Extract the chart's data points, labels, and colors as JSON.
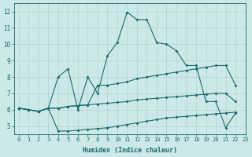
{
  "xlabel": "Humidex (Indice chaleur)",
  "xlim": [
    -0.5,
    23
  ],
  "ylim": [
    4.5,
    12.5
  ],
  "yticks": [
    5,
    6,
    7,
    8,
    9,
    10,
    11,
    12
  ],
  "xticks": [
    0,
    1,
    2,
    3,
    4,
    5,
    6,
    7,
    8,
    9,
    10,
    11,
    12,
    13,
    14,
    15,
    16,
    17,
    18,
    19,
    20,
    21,
    22,
    23
  ],
  "bg_color": "#cde8e8",
  "grid_color": "#aacece",
  "line_color": "#1a6b6b",
  "lines": [
    [
      6.1,
      6.0,
      5.9,
      6.1,
      8.0,
      8.5,
      6.0,
      8.0,
      7.0,
      9.3,
      10.1,
      11.95,
      11.5,
      11.5,
      10.1,
      10.0,
      9.6,
      8.7,
      8.7,
      6.5,
      6.5,
      4.9,
      5.8
    ],
    [
      6.1,
      6.0,
      5.9,
      6.1,
      6.1,
      6.2,
      6.25,
      6.3,
      7.5,
      7.5,
      7.6,
      7.7,
      7.9,
      8.0,
      8.1,
      8.2,
      8.3,
      8.4,
      8.5,
      8.6,
      8.7,
      8.7,
      7.5
    ],
    [
      6.1,
      6.0,
      5.9,
      6.1,
      4.7,
      4.7,
      4.75,
      4.8,
      4.85,
      4.9,
      5.0,
      5.1,
      5.2,
      5.3,
      5.4,
      5.5,
      5.55,
      5.6,
      5.65,
      5.7,
      5.75,
      5.8,
      5.85
    ],
    [
      6.1,
      6.0,
      5.9,
      6.1,
      6.1,
      6.2,
      6.25,
      6.3,
      6.35,
      6.4,
      6.45,
      6.5,
      6.6,
      6.65,
      6.7,
      6.75,
      6.8,
      6.85,
      6.9,
      6.95,
      7.0,
      7.0,
      6.5
    ]
  ],
  "figsize": [
    3.2,
    2.0
  ],
  "dpi": 100,
  "xlabel_fontsize": 6,
  "tick_fontsize": 5,
  "line_width": 0.8,
  "marker_size": 2.0
}
